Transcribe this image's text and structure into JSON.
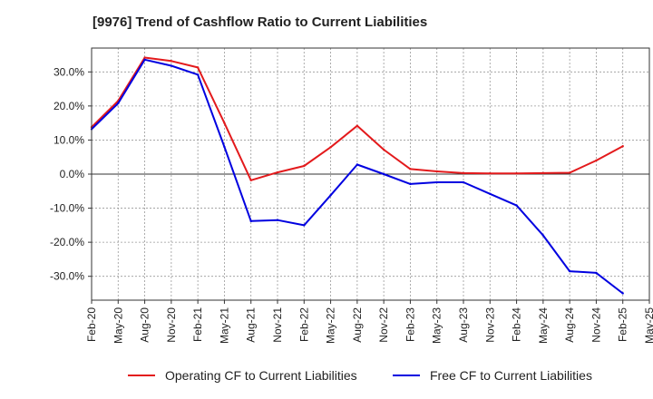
{
  "chart_data": {
    "type": "line",
    "title": "[9976]  Trend of Cashflow Ratio to Current Liabilities",
    "xlabel": "",
    "ylabel": "",
    "x": [
      "Feb-20",
      "May-20",
      "Aug-20",
      "Nov-20",
      "Feb-21",
      "May-21",
      "Aug-21",
      "Nov-21",
      "Feb-22",
      "May-22",
      "Aug-22",
      "Nov-22",
      "Feb-23",
      "May-23",
      "Aug-23",
      "Nov-23",
      "Feb-24",
      "May-24",
      "Aug-24",
      "Nov-24",
      "Feb-25",
      "May-25"
    ],
    "ylim": [
      -37,
      37
    ],
    "yticks": [
      -30,
      -20,
      -10,
      0,
      10,
      20,
      30
    ],
    "ytick_labels": [
      "-30.0%",
      "-20.0%",
      "-10.0%",
      "0.0%",
      "10.0%",
      "20.0%",
      "30.0%"
    ],
    "grid": true,
    "legend_position": "bottom",
    "series": [
      {
        "name": "Operating CF to Current Liabilities",
        "color": "#e31a1c",
        "values": [
          13.8,
          21.5,
          34.2,
          33.2,
          31.3,
          15.0,
          -1.8,
          0.5,
          2.4,
          7.9,
          14.2,
          7.2,
          1.5,
          0.8,
          0.3,
          0.2,
          0.2,
          0.3,
          0.4,
          4.0,
          8.2,
          null
        ]
      },
      {
        "name": "Free CF to Current Liabilities",
        "color": "#0000e0",
        "values": [
          13.2,
          20.8,
          33.6,
          31.8,
          29.2,
          8.0,
          -13.8,
          -13.5,
          -15.0,
          -6.2,
          2.8,
          0.0,
          -2.9,
          -2.4,
          -2.4,
          -5.8,
          -9.2,
          -18.0,
          -28.5,
          -29.0,
          -35.0,
          null
        ]
      }
    ]
  }
}
